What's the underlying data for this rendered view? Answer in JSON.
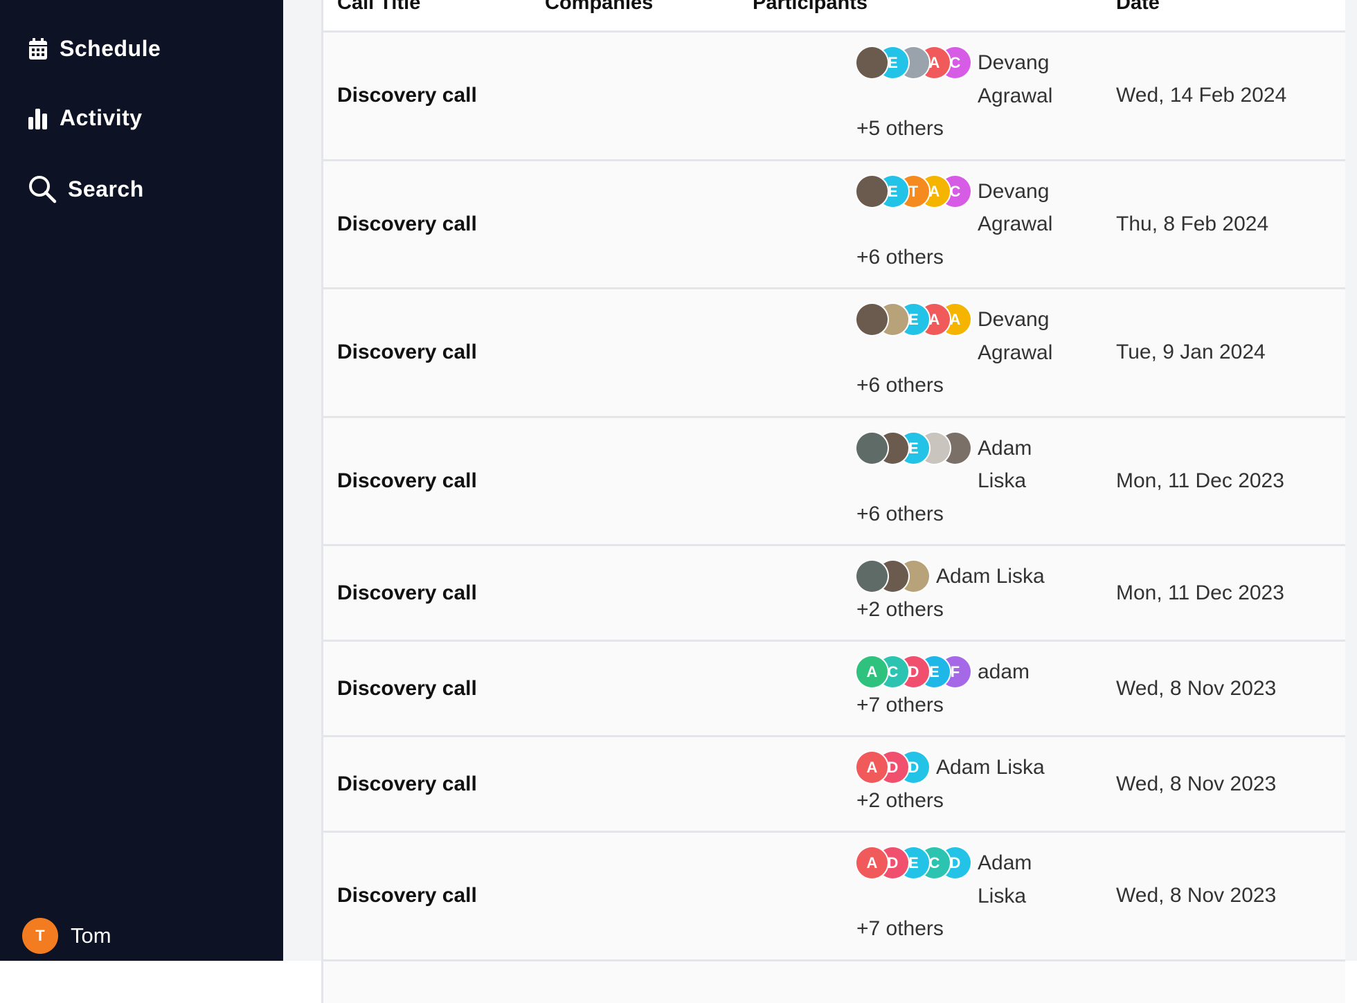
{
  "sidebar": {
    "nav": [
      "Schedule",
      "Activity",
      "Search"
    ],
    "user": {
      "initial": "T",
      "name": "Tom"
    }
  },
  "table": {
    "columns": [
      "Call Title",
      "Companies",
      "Participants",
      "Date"
    ],
    "rows": [
      {
        "title": "Discovery call",
        "participants": {
          "avatars": [
            {
              "color": "#6b5a4e"
            },
            {
              "letter": "E",
              "color": "#22c3e6"
            },
            {
              "color": "#9aa3ab"
            },
            {
              "letter": "A",
              "color": "#f05a5a"
            },
            {
              "letter": "C",
              "color": "#d65ce6"
            }
          ],
          "name": "Devang Agrawal",
          "others": "+5 others"
        },
        "date": "Wed, 14 Feb 2024"
      },
      {
        "title": "Discovery call",
        "participants": {
          "avatars": [
            {
              "color": "#6b5a4e"
            },
            {
              "letter": "E",
              "color": "#22c3e6"
            },
            {
              "letter": "T",
              "color": "#f58a1f"
            },
            {
              "letter": "A",
              "color": "#f5b400"
            },
            {
              "letter": "C",
              "color": "#d65ce6"
            }
          ],
          "name": "Devang Agrawal",
          "others": "+6 others"
        },
        "date": "Thu, 8 Feb 2024"
      },
      {
        "title": "Discovery call",
        "participants": {
          "avatars": [
            {
              "color": "#6b5a4e"
            },
            {
              "color": "#b8a27a"
            },
            {
              "letter": "E",
              "color": "#22c3e6"
            },
            {
              "letter": "A",
              "color": "#f05a5a"
            },
            {
              "letter": "A",
              "color": "#f5b400"
            }
          ],
          "name": "Devang Agrawal",
          "others": "+6 others"
        },
        "date": "Tue, 9 Jan 2024"
      },
      {
        "title": "Discovery call",
        "participants": {
          "avatars": [
            {
              "color": "#5f6b66"
            },
            {
              "color": "#6b5a4e"
            },
            {
              "letter": "E",
              "color": "#22c3e6"
            },
            {
              "color": "#c9c4bd"
            },
            {
              "color": "#7a7068"
            }
          ],
          "name": "Adam Liska",
          "others": "+6 others"
        },
        "date": "Mon, 11 Dec 2023"
      },
      {
        "title": "Discovery call",
        "participants": {
          "avatars": [
            {
              "color": "#5f6b66"
            },
            {
              "color": "#6b5a4e"
            },
            {
              "color": "#b8a27a"
            }
          ],
          "name": "Adam Liska",
          "others": "+2 others"
        },
        "date": "Mon, 11 Dec 2023"
      },
      {
        "title": "Discovery call",
        "participants": {
          "avatars": [
            {
              "letter": "A",
              "color": "#2ec27e"
            },
            {
              "letter": "C",
              "color": "#2cc4b0"
            },
            {
              "letter": "D",
              "color": "#f0506e"
            },
            {
              "letter": "E",
              "color": "#1fb6e8"
            },
            {
              "letter": "F",
              "color": "#a569e8"
            }
          ],
          "name": "adam",
          "others": "+7 others"
        },
        "date": "Wed, 8 Nov 2023"
      },
      {
        "title": "Discovery call",
        "participants": {
          "avatars": [
            {
              "letter": "A",
              "color": "#f05a5a"
            },
            {
              "letter": "D",
              "color": "#f0506e"
            },
            {
              "letter": "D",
              "color": "#22c3e6"
            }
          ],
          "name": "Adam Liska",
          "others": "+2 others"
        },
        "date": "Wed, 8 Nov 2023"
      },
      {
        "title": "Discovery call",
        "participants": {
          "avatars": [
            {
              "letter": "A",
              "color": "#f05a5a"
            },
            {
              "letter": "D",
              "color": "#f0506e"
            },
            {
              "letter": "E",
              "color": "#22c3e6"
            },
            {
              "letter": "C",
              "color": "#2cc4b0"
            },
            {
              "letter": "D",
              "color": "#22c3e6"
            }
          ],
          "name": "Adam Liska",
          "others": "+7 others"
        },
        "date": "Wed, 8 Nov 2023"
      }
    ]
  }
}
